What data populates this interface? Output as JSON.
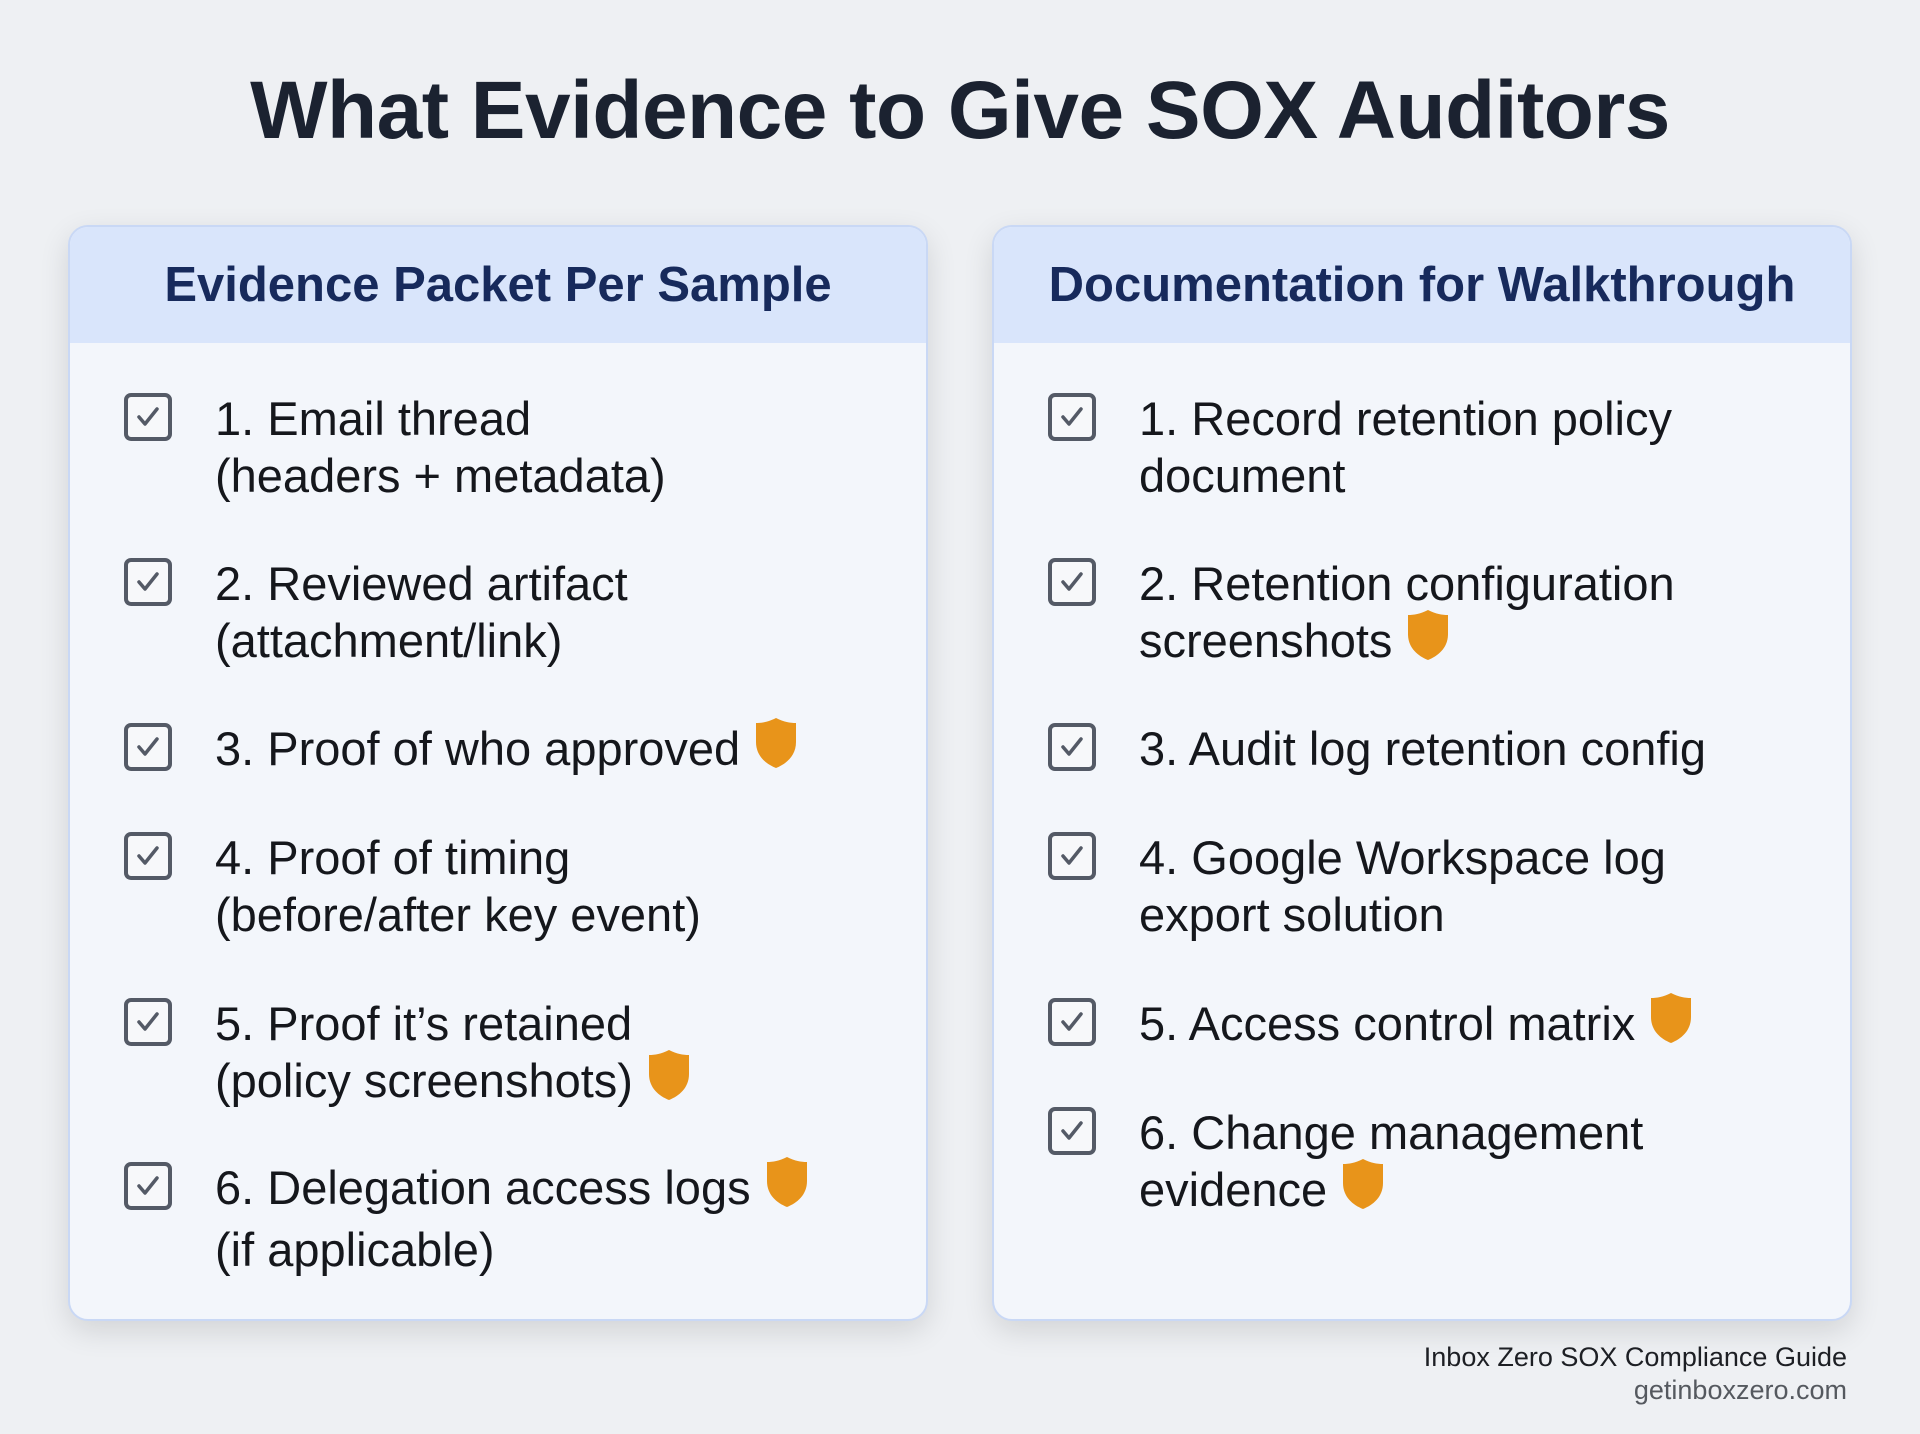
{
  "title": "What Evidence to Give SOX Auditors",
  "colors": {
    "shield": "#e8941a",
    "header_bg": "#d9e5fb",
    "header_text": "#172a5c"
  },
  "cards": [
    {
      "heading": "Evidence Packet Per Sample",
      "items": [
        {
          "lines": [
            "1. Email thread",
            "(headers + metadata)"
          ],
          "checked": true,
          "shield": false
        },
        {
          "lines": [
            "2. Reviewed artifact",
            "(attachment/link)"
          ],
          "checked": true,
          "shield": false
        },
        {
          "lines": [
            "3. Proof of who approved"
          ],
          "checked": true,
          "shield": true
        },
        {
          "lines": [
            "4. Proof of timing",
            "(before/after key event)"
          ],
          "checked": true,
          "shield": false
        },
        {
          "lines": [
            "5. Proof it’s retained",
            "(policy screenshots)"
          ],
          "checked": true,
          "shield": true
        },
        {
          "lines": [
            "6. Delegation access logs",
            "(if applicable)"
          ],
          "checked": true,
          "shield": true,
          "shield_line": 0
        }
      ]
    },
    {
      "heading": "Documentation for Walkthrough",
      "items": [
        {
          "lines": [
            "1. Record retention policy",
            "document"
          ],
          "checked": true,
          "shield": false
        },
        {
          "lines": [
            "2. Retention configuration",
            "screenshots"
          ],
          "checked": true,
          "shield": true
        },
        {
          "lines": [
            "3. Audit log retention config"
          ],
          "checked": true,
          "shield": false
        },
        {
          "lines": [
            "4. Google Workspace log",
            "export solution"
          ],
          "checked": true,
          "shield": false
        },
        {
          "lines": [
            "5. Access control matrix"
          ],
          "checked": true,
          "shield": true
        },
        {
          "lines": [
            "6. Change management",
            "evidence"
          ],
          "checked": true,
          "shield": true
        }
      ]
    }
  ],
  "footer": {
    "line1": "Inbox Zero SOX Compliance Guide",
    "line2": "getinboxzero.com"
  }
}
